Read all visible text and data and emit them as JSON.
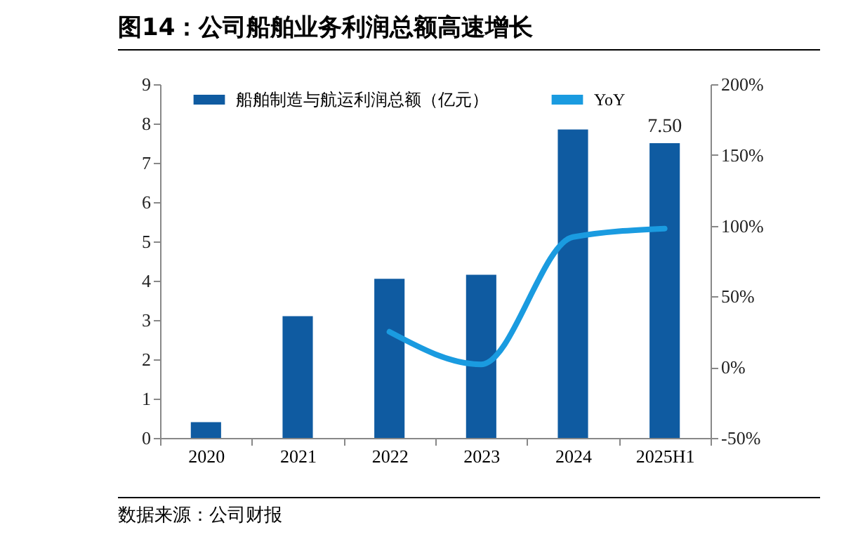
{
  "chart_data": {
    "type": "bar",
    "title": "图14：公司船舶业务利润总额高速增长",
    "categories": [
      "2020",
      "2021",
      "2022",
      "2023",
      "2024",
      "2025H1"
    ],
    "series": [
      {
        "name": "船舶制造与航运利润总额（亿元）",
        "type": "bar",
        "color": "#0f5ba1",
        "values": [
          0.4,
          3.1,
          4.05,
          4.15,
          7.85,
          7.5
        ],
        "value_labels": [
          null,
          null,
          null,
          null,
          null,
          "7.50"
        ]
      },
      {
        "name": "YoY",
        "type": "line",
        "axis": "y2",
        "color": "#1a9be0",
        "values": [
          null,
          null,
          25,
          2,
          92,
          98
        ]
      }
    ],
    "ylim": [
      0,
      9
    ],
    "yticks": [
      0,
      1,
      2,
      3,
      4,
      5,
      6,
      7,
      8,
      9
    ],
    "y2lim": [
      -50,
      200
    ],
    "y2ticks": [
      {
        "value": -50,
        "label": "-50%"
      },
      {
        "value": 0,
        "label": "0%"
      },
      {
        "value": 50,
        "label": "50%"
      },
      {
        "value": 100,
        "label": "100%"
      },
      {
        "value": 150,
        "label": "150%"
      },
      {
        "value": 200,
        "label": "200%"
      }
    ],
    "legend": "top",
    "grid": false,
    "annotations": [
      "数据来源：公司财报"
    ]
  }
}
